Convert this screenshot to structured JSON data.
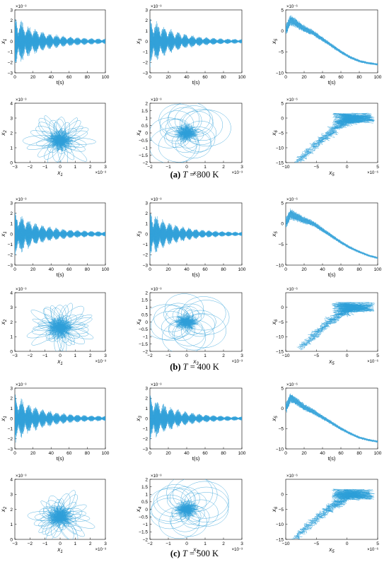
{
  "figure": {
    "rows": [
      {
        "caption_tag": "(a)",
        "caption_var": "T",
        "caption_rest": " = 300 K"
      },
      {
        "caption_tag": "(b)",
        "caption_var": "T",
        "caption_rest": " = 400 K"
      },
      {
        "caption_tag": "(c)",
        "caption_var": "T",
        "caption_rest": " = 500 K"
      }
    ],
    "colors": {
      "trace": "#2e9fd8",
      "axis": "#000000"
    }
  },
  "chart_data": [
    {
      "group": "a",
      "row": 0,
      "col": 0,
      "type": "line",
      "ylabel": "x1",
      "xlabel": "t(s)",
      "xlim": [
        0,
        100
      ],
      "ylim": [
        -3,
        3
      ],
      "yexp": "×10⁻³",
      "xticks": [
        0,
        20,
        40,
        60,
        80,
        100
      ],
      "yticks": [
        -3,
        -2,
        -1,
        0,
        1,
        2,
        3
      ],
      "series": [
        {
          "kind": "decay",
          "amp_start": 2.6,
          "amp_end": 0.2,
          "beats": 13
        }
      ]
    },
    {
      "group": "a",
      "row": 0,
      "col": 1,
      "type": "line",
      "ylabel": "x3",
      "xlabel": "t(s)",
      "xlim": [
        0,
        100
      ],
      "ylim": [
        -3,
        3
      ],
      "yexp": "×10⁻³",
      "xticks": [
        0,
        20,
        40,
        60,
        80,
        100
      ],
      "yticks": [
        -3,
        -2,
        -1,
        0,
        1,
        2,
        3
      ],
      "series": [
        {
          "kind": "decay",
          "amp_start": 2.5,
          "amp_end": 0.15,
          "beats": 13
        }
      ]
    },
    {
      "group": "a",
      "row": 0,
      "col": 2,
      "type": "line",
      "ylabel": "x5",
      "xlabel": "t(s)",
      "xlim": [
        0,
        100
      ],
      "ylim": [
        -10,
        5
      ],
      "yexp": "×10⁻⁶",
      "xticks": [
        0,
        20,
        40,
        60,
        80,
        100
      ],
      "yticks": [
        -10,
        -5,
        0,
        5
      ],
      "series": [
        {
          "kind": "drift",
          "points": [
            [
              0,
              0
            ],
            [
              5,
              2.5
            ],
            [
              10,
              2
            ],
            [
              20,
              0.5
            ],
            [
              30,
              -0.5
            ],
            [
              40,
              -2
            ],
            [
              50,
              -3.5
            ],
            [
              60,
              -5
            ],
            [
              70,
              -6.3
            ],
            [
              80,
              -7.2
            ],
            [
              90,
              -7.7
            ],
            [
              100,
              -8
            ]
          ]
        }
      ]
    },
    {
      "group": "a",
      "row": 1,
      "col": 0,
      "type": "scatter",
      "ylabel": "x2",
      "xlabel": "x1",
      "xlim": [
        -3,
        3
      ],
      "ylim": [
        0,
        4
      ],
      "xexp": "×10⁻³",
      "yexp": "×10⁻³",
      "xticks": [
        -3,
        -2,
        -1,
        0,
        1,
        2,
        3
      ],
      "yticks": [
        0,
        1,
        2,
        3,
        4
      ],
      "series": [
        {
          "kind": "flower",
          "cx": 0,
          "cy": 1.5,
          "rx": 2.5,
          "ry": 2.2
        }
      ]
    },
    {
      "group": "a",
      "row": 1,
      "col": 1,
      "type": "scatter",
      "ylabel": "x4",
      "xlabel": "x3",
      "xlim": [
        -2,
        3
      ],
      "ylim": [
        -2,
        2
      ],
      "xexp": "×10⁻³",
      "yexp": "×10⁻³",
      "xticks": [
        -2,
        -1,
        0,
        1,
        2,
        3
      ],
      "yticks": [
        -2,
        -1.5,
        -1,
        -0.5,
        0,
        0.5,
        1,
        1.5,
        2
      ],
      "series": [
        {
          "kind": "loops",
          "cx": 0,
          "cy": 0,
          "r": 1.3
        }
      ]
    },
    {
      "group": "a",
      "row": 1,
      "col": 2,
      "type": "scatter",
      "ylabel": "x6",
      "xlabel": "x5",
      "xlim": [
        -10,
        5
      ],
      "ylim": [
        -15,
        5
      ],
      "xexp": "×10⁻⁶",
      "yexp": "×10⁻⁶",
      "xticks": [
        -10,
        -5,
        0,
        5
      ],
      "yticks": [
        -15,
        -10,
        -5,
        0,
        5
      ],
      "series": [
        {
          "kind": "arc",
          "x0": -8,
          "y0": -15,
          "x1": 1,
          "y1": 0
        }
      ]
    },
    {
      "group": "b",
      "row": 2,
      "col": 0,
      "type": "line",
      "ylabel": "x1",
      "xlabel": "t(s)",
      "xlim": [
        0,
        100
      ],
      "ylim": [
        -3,
        3
      ],
      "yexp": "×10⁻³",
      "xticks": [
        0,
        20,
        40,
        60,
        80,
        100
      ],
      "yticks": [
        -3,
        -2,
        -1,
        0,
        1,
        2,
        3
      ],
      "series": [
        {
          "kind": "decay",
          "amp_start": 2.4,
          "amp_end": 0.2,
          "beats": 13
        }
      ]
    },
    {
      "group": "b",
      "row": 2,
      "col": 1,
      "type": "line",
      "ylabel": "x3",
      "xlabel": "t(s)",
      "xlim": [
        0,
        100
      ],
      "ylim": [
        -3,
        3
      ],
      "yexp": "×10⁻³",
      "xticks": [
        0,
        20,
        40,
        60,
        80,
        100
      ],
      "yticks": [
        -3,
        -2,
        -1,
        0,
        1,
        2,
        3
      ],
      "series": [
        {
          "kind": "decay",
          "amp_start": 2.4,
          "amp_end": 0.15,
          "beats": 14
        }
      ]
    },
    {
      "group": "b",
      "row": 2,
      "col": 2,
      "type": "line",
      "ylabel": "x5",
      "xlabel": "t(s)",
      "xlim": [
        0,
        100
      ],
      "ylim": [
        -10,
        5
      ],
      "yexp": "×10⁻⁶",
      "xticks": [
        0,
        20,
        40,
        60,
        80,
        100
      ],
      "yticks": [
        -10,
        -5,
        0,
        5
      ],
      "series": [
        {
          "kind": "drift",
          "points": [
            [
              0,
              0
            ],
            [
              5,
              2.3
            ],
            [
              10,
              1.8
            ],
            [
              20,
              0.8
            ],
            [
              30,
              0
            ],
            [
              40,
              -1.5
            ],
            [
              50,
              -3
            ],
            [
              60,
              -4.5
            ],
            [
              70,
              -5.8
            ],
            [
              80,
              -6.8
            ],
            [
              90,
              -7.7
            ],
            [
              100,
              -8.3
            ]
          ]
        }
      ]
    },
    {
      "group": "b",
      "row": 3,
      "col": 0,
      "type": "scatter",
      "ylabel": "x2",
      "xlabel": "x1",
      "xlim": [
        -3,
        3
      ],
      "ylim": [
        0,
        4
      ],
      "xexp": "×10⁻³",
      "yexp": "×10⁻³",
      "xticks": [
        -3,
        -2,
        -1,
        0,
        1,
        2,
        3
      ],
      "yticks": [
        0,
        1,
        2,
        3,
        4
      ],
      "series": [
        {
          "kind": "flower",
          "cx": 0,
          "cy": 1.6,
          "rx": 2.4,
          "ry": 2.2
        }
      ]
    },
    {
      "group": "b",
      "row": 3,
      "col": 1,
      "type": "scatter",
      "ylabel": "x4",
      "xlabel": "x3",
      "xlim": [
        -2,
        3
      ],
      "ylim": [
        -2,
        2
      ],
      "xexp": "×10⁻³",
      "yexp": "×10⁻³",
      "xticks": [
        -2,
        -1,
        0,
        1,
        2,
        3
      ],
      "yticks": [
        -2,
        -1.5,
        -1,
        -0.5,
        0,
        0.5,
        1,
        1.5,
        2
      ],
      "series": [
        {
          "kind": "loops",
          "cx": 0,
          "cy": 0,
          "r": 1.3
        }
      ]
    },
    {
      "group": "b",
      "row": 3,
      "col": 2,
      "type": "scatter",
      "ylabel": "x6",
      "xlabel": "x5",
      "xlim": [
        -10,
        5
      ],
      "ylim": [
        -15,
        5
      ],
      "xexp": "×10⁻⁶",
      "yexp": "×10⁻⁶",
      "xticks": [
        -10,
        -5,
        0,
        5
      ],
      "yticks": [
        -15,
        -10,
        -5,
        0
      ],
      "series": [
        {
          "kind": "arc",
          "x0": -7.5,
          "y0": -14,
          "x1": 1,
          "y1": 0
        }
      ]
    },
    {
      "group": "c",
      "row": 4,
      "col": 0,
      "type": "line",
      "ylabel": "x1",
      "xlabel": "t(s)",
      "xlim": [
        0,
        100
      ],
      "ylim": [
        -3,
        3
      ],
      "yexp": "×10⁻³",
      "xticks": [
        0,
        20,
        40,
        60,
        80,
        100
      ],
      "yticks": [
        -3,
        -2,
        -1,
        0,
        1,
        2,
        3
      ],
      "series": [
        {
          "kind": "decay",
          "amp_start": 2.6,
          "amp_end": 0.2,
          "beats": 13
        }
      ]
    },
    {
      "group": "c",
      "row": 4,
      "col": 1,
      "type": "line",
      "ylabel": "x3",
      "xlabel": "t(s)",
      "xlim": [
        0,
        100
      ],
      "ylim": [
        -3,
        3
      ],
      "yexp": "×10⁻³",
      "xticks": [
        0,
        20,
        40,
        60,
        80,
        100
      ],
      "yticks": [
        -3,
        -2,
        -1,
        0,
        1,
        2,
        3
      ],
      "series": [
        {
          "kind": "decay",
          "amp_start": 2.5,
          "amp_end": 0.15,
          "beats": 13
        }
      ]
    },
    {
      "group": "c",
      "row": 4,
      "col": 2,
      "type": "line",
      "ylabel": "x5",
      "xlabel": "t(s)",
      "xlim": [
        0,
        100
      ],
      "ylim": [
        -10,
        5
      ],
      "yexp": "×10⁻⁶",
      "xticks": [
        0,
        20,
        40,
        60,
        80,
        100
      ],
      "yticks": [
        -10,
        -5,
        0,
        5
      ],
      "series": [
        {
          "kind": "drift",
          "points": [
            [
              0,
              0
            ],
            [
              5,
              2.5
            ],
            [
              10,
              2
            ],
            [
              20,
              0.3
            ],
            [
              30,
              -0.8
            ],
            [
              40,
              -2.2
            ],
            [
              50,
              -3.6
            ],
            [
              60,
              -5
            ],
            [
              70,
              -6.2
            ],
            [
              80,
              -7.2
            ],
            [
              90,
              -7.8
            ],
            [
              100,
              -8.2
            ]
          ]
        }
      ]
    },
    {
      "group": "c",
      "row": 5,
      "col": 0,
      "type": "scatter",
      "ylabel": "x2",
      "xlabel": "x1",
      "xlim": [
        -3,
        3
      ],
      "ylim": [
        0,
        4
      ],
      "xexp": "×10⁻³",
      "yexp": "×10⁻³",
      "xticks": [
        -3,
        -2,
        -1,
        0,
        1,
        2,
        3
      ],
      "yticks": [
        0,
        1,
        2,
        3,
        4
      ],
      "series": [
        {
          "kind": "flower",
          "cx": 0,
          "cy": 1.5,
          "rx": 2.5,
          "ry": 2.2
        }
      ]
    },
    {
      "group": "c",
      "row": 5,
      "col": 1,
      "type": "scatter",
      "ylabel": "x4",
      "xlabel": "x3",
      "xlim": [
        -2,
        3
      ],
      "ylim": [
        -2,
        2
      ],
      "xexp": "×10⁻³",
      "yexp": "×10⁻³",
      "xticks": [
        -2,
        -1,
        0,
        1,
        2,
        3
      ],
      "yticks": [
        -2,
        -1.5,
        -1,
        -0.5,
        0,
        0.5,
        1,
        1.5,
        2
      ],
      "series": [
        {
          "kind": "loops",
          "cx": 0,
          "cy": 0,
          "r": 1.3
        }
      ]
    },
    {
      "group": "c",
      "row": 5,
      "col": 2,
      "type": "scatter",
      "ylabel": "x6",
      "xlabel": "x5",
      "xlim": [
        -10,
        5
      ],
      "ylim": [
        -15,
        5
      ],
      "xexp": "×10⁻⁶",
      "yexp": "×10⁻⁶",
      "xticks": [
        -10,
        -5,
        0,
        5
      ],
      "yticks": [
        -15,
        -10,
        -5,
        0
      ],
      "series": [
        {
          "kind": "arc",
          "x0": -8.5,
          "y0": -15,
          "x1": 1,
          "y1": 0
        }
      ]
    }
  ]
}
